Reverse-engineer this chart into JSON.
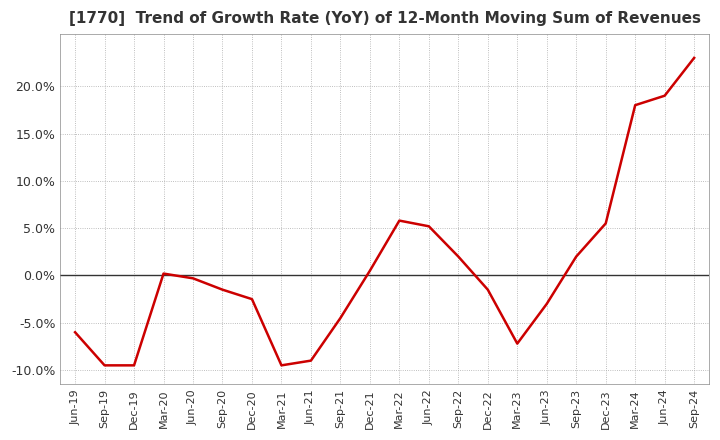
{
  "title": "[1770]  Trend of Growth Rate (YoY) of 12-Month Moving Sum of Revenues",
  "title_fontsize": 11,
  "line_color": "#cc0000",
  "background_color": "#ffffff",
  "grid_color": "#aaaaaa",
  "x_labels": [
    "Jun-19",
    "Sep-19",
    "Dec-19",
    "Mar-20",
    "Jun-20",
    "Sep-20",
    "Dec-20",
    "Mar-21",
    "Jun-21",
    "Sep-21",
    "Dec-21",
    "Mar-22",
    "Jun-22",
    "Sep-22",
    "Dec-22",
    "Mar-23",
    "Jun-23",
    "Sep-23",
    "Dec-23",
    "Mar-24",
    "Jun-24",
    "Sep-24"
  ],
  "y_values": [
    -6.0,
    -9.5,
    -9.5,
    0.2,
    -0.3,
    -1.5,
    -2.5,
    -9.5,
    -9.0,
    -4.5,
    0.5,
    5.8,
    5.2,
    2.0,
    -1.5,
    -7.2,
    -3.0,
    2.0,
    5.5,
    18.0,
    19.0,
    23.0
  ],
  "ylim": [
    -11.5,
    25.5
  ],
  "yticks": [
    -10.0,
    -5.0,
    0.0,
    5.0,
    10.0,
    15.0,
    20.0
  ]
}
